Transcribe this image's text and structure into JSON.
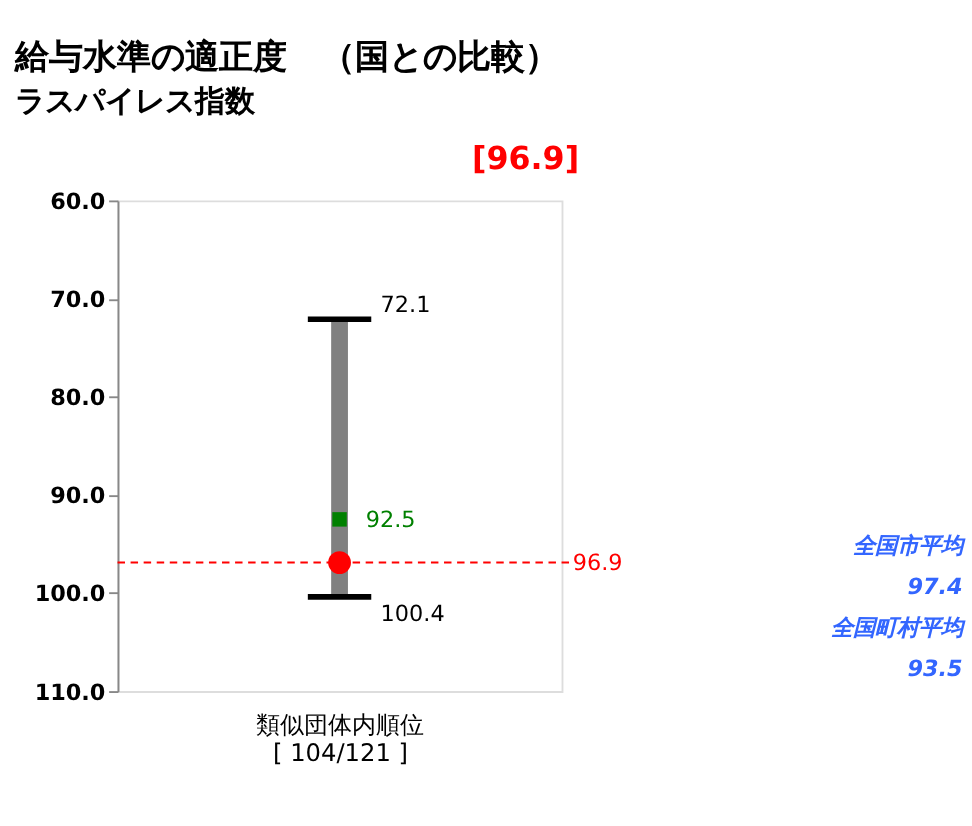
{
  "chart_data": {
    "type": "scatter",
    "title": "給与水準の適正度　（国との比較）",
    "subtitle": "ラスパイレス指数",
    "xlabel": "類似団体内順位\n[ 104/121 ]",
    "categories": [
      null
    ],
    "ylim": [
      110,
      60
    ],
    "yticks": [
      {
        "value": 60,
        "label": "60.0"
      },
      {
        "value": 70,
        "label": "70.0"
      },
      {
        "value": 80,
        "label": "80.0"
      },
      {
        "value": 90,
        "label": "90.0"
      },
      {
        "value": 100,
        "label": "100.0"
      },
      {
        "value": 110,
        "label": "110.0"
      }
    ],
    "series": [
      {
        "marker": "circle",
        "color": "#ff0000",
        "values": [
          96.9
        ],
        "errors": [
          [
            72.1,
            100.4
          ]
        ]
      },
      {
        "marker": "square",
        "color": "#008000",
        "values": [
          92.5
        ],
        "value_labels": [
          "92.5"
        ]
      }
    ],
    "ref_lines": [
      {
        "axis": "y",
        "value": 96.9,
        "label": "96.9",
        "color": "#ff0000",
        "line_style": "dashed"
      }
    ],
    "annotations": [
      "[96.9]",
      "72.1",
      "100.4",
      "全国市平均",
      "97.4",
      "全国町村平均",
      "93.5"
    ],
    "grid": false
  }
}
